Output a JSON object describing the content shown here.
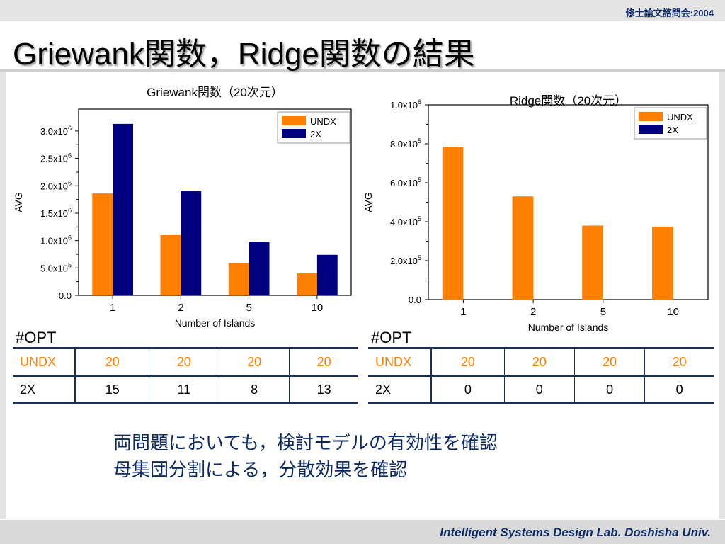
{
  "header": {
    "conference": "修士論文諮問会:2004",
    "title": "Griewank関数，Ridge関数の結果"
  },
  "footer": {
    "lab": "Intelligent Systems Design Lab. Doshisha Univ."
  },
  "colors": {
    "undx": "#ff7f00",
    "twox": "#000080",
    "title_text": "#0b2a66"
  },
  "chart_data": [
    {
      "type": "bar",
      "title": "Griewank関数（20次元）",
      "xlabel": "Number of Islands",
      "ylabel": "AVG",
      "categories": [
        "1",
        "2",
        "5",
        "10"
      ],
      "series": [
        {
          "name": "UNDX",
          "values": [
            1860000,
            1100000,
            590000,
            400000
          ]
        },
        {
          "name": "2X",
          "values": [
            3130000,
            1900000,
            980000,
            740000
          ]
        }
      ],
      "ylim": [
        0,
        3400000
      ],
      "yticks": [
        {
          "value": 0,
          "mant": "0.0",
          "exp": ""
        },
        {
          "value": 500000,
          "mant": "5.0x10",
          "exp": "5"
        },
        {
          "value": 1000000,
          "mant": "1.0x10",
          "exp": "6"
        },
        {
          "value": 1500000,
          "mant": "1.5x10",
          "exp": "6"
        },
        {
          "value": 2000000,
          "mant": "2.0x10",
          "exp": "6"
        },
        {
          "value": 2500000,
          "mant": "2.5x10",
          "exp": "6"
        },
        {
          "value": 3000000,
          "mant": "3.0x10",
          "exp": "6"
        }
      ],
      "legend": "top-right"
    },
    {
      "type": "bar",
      "title": "Ridge関数（20次元）",
      "xlabel": "Number of Islands",
      "ylabel": "AVG",
      "categories": [
        "1",
        "2",
        "5",
        "10"
      ],
      "series": [
        {
          "name": "UNDX",
          "values": [
            785000,
            530000,
            380000,
            375000
          ]
        },
        {
          "name": "2X",
          "values": [
            0,
            0,
            0,
            0
          ]
        }
      ],
      "ylim": [
        0,
        1000000
      ],
      "yticks": [
        {
          "value": 0,
          "mant": "0.0",
          "exp": ""
        },
        {
          "value": 200000,
          "mant": "2.0x10",
          "exp": "5"
        },
        {
          "value": 400000,
          "mant": "4.0x10",
          "exp": "5"
        },
        {
          "value": 600000,
          "mant": "6.0x10",
          "exp": "5"
        },
        {
          "value": 800000,
          "mant": "8.0x10",
          "exp": "5"
        },
        {
          "value": 1000000,
          "mant": "1.0x10",
          "exp": "6"
        }
      ],
      "legend": "top-right"
    }
  ],
  "tables": [
    {
      "label": "#OPT",
      "rows": [
        {
          "name": "UNDX",
          "cells": [
            "20",
            "20",
            "20",
            "20"
          ]
        },
        {
          "name": "2X",
          "cells": [
            "15",
            "11",
            "8",
            "13"
          ]
        }
      ]
    },
    {
      "label": "#OPT",
      "rows": [
        {
          "name": "UNDX",
          "cells": [
            "20",
            "20",
            "20",
            "20"
          ]
        },
        {
          "name": "2X",
          "cells": [
            "0",
            "0",
            "0",
            "0"
          ]
        }
      ]
    }
  ],
  "summary": {
    "line1": "両問題においても，検討モデルの有効性を確認",
    "line2": "母集団分割による，分散効果を確認"
  }
}
